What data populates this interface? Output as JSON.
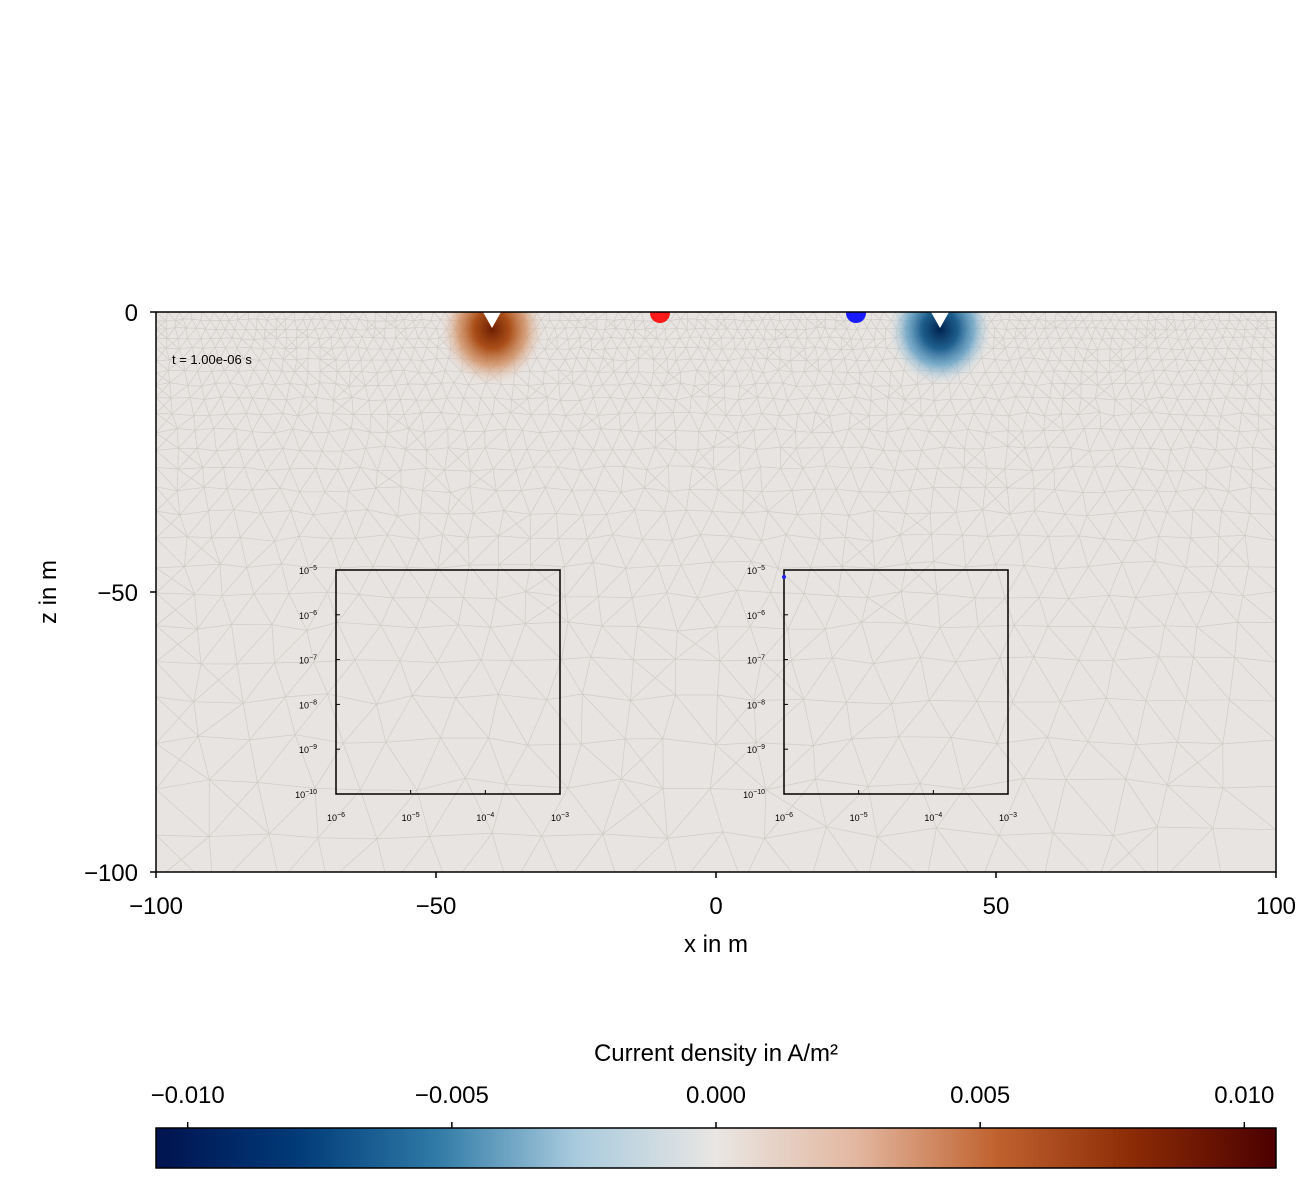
{
  "chart_data": {
    "type": "heatmap",
    "annotation": "t = 1.00e-06 s",
    "main_axes": {
      "xlabel": "x in m",
      "ylabel": "z in m",
      "xlim": [
        -100,
        100
      ],
      "ylim": [
        -100,
        0
      ],
      "xticks": [
        -100,
        -50,
        0,
        50,
        100
      ],
      "xtick_labels": [
        "−100",
        "−50",
        "0",
        "50",
        "100"
      ],
      "yticks": [
        0,
        -50,
        -100
      ],
      "ytick_labels": [
        "0",
        "−50",
        "−100"
      ],
      "grid": false,
      "background_color": "#e8e4e1",
      "mesh_color": "#c9c5c2"
    },
    "field_sources": [
      {
        "x": -40,
        "z": -2,
        "polarity": "positive",
        "peak": 0.01
      },
      {
        "x": 40,
        "z": -2,
        "polarity": "negative",
        "peak": -0.01
      }
    ],
    "electrodes": [
      {
        "x": -10,
        "z": 0,
        "color": "#ff1a1a"
      },
      {
        "x": 25,
        "z": 0,
        "color": "#1a1aff"
      }
    ],
    "surface_markers": [
      {
        "x": -40,
        "z": 0,
        "shape": "triangle-down",
        "color": "#ffffff"
      },
      {
        "x": 40,
        "z": 0,
        "shape": "triangle-down",
        "color": "#ffffff"
      }
    ],
    "insets": [
      {
        "xscale": "log",
        "yscale": "log",
        "xlim": [
          1e-06,
          0.001
        ],
        "ylim": [
          1e-10,
          1e-05
        ],
        "xtick_labels": [
          [
            "10",
            "−6"
          ],
          [
            "10",
            "−5"
          ],
          [
            "10",
            "−4"
          ],
          [
            "10",
            "−3"
          ]
        ],
        "ytick_labels": [
          [
            "10",
            "−5"
          ],
          [
            "10",
            "−6"
          ],
          [
            "10",
            "−7"
          ],
          [
            "10",
            "−8"
          ],
          [
            "10",
            "−9"
          ],
          [
            "10",
            "−10"
          ]
        ],
        "points": []
      },
      {
        "xscale": "log",
        "yscale": "log",
        "xlim": [
          1e-06,
          0.001
        ],
        "ylim": [
          1e-10,
          1e-05
        ],
        "xtick_labels": [
          [
            "10",
            "−6"
          ],
          [
            "10",
            "−5"
          ],
          [
            "10",
            "−4"
          ],
          [
            "10",
            "−3"
          ]
        ],
        "ytick_labels": [
          [
            "10",
            "−5"
          ],
          [
            "10",
            "−6"
          ],
          [
            "10",
            "−7"
          ],
          [
            "10",
            "−8"
          ],
          [
            "10",
            "−9"
          ],
          [
            "10",
            "−10"
          ]
        ],
        "points": [
          {
            "x": 1e-06,
            "y": 7e-06,
            "color": "#2020ff"
          }
        ]
      }
    ],
    "colorbar": {
      "label": "Current density in A/m²",
      "limits": [
        -0.0106,
        0.0106
      ],
      "ticks": [
        -0.01,
        -0.005,
        0.0,
        0.005,
        0.01
      ],
      "tick_labels": [
        "−0.010",
        "−0.005",
        "0.000",
        "0.005",
        "0.010"
      ],
      "colormap": [
        "#00134f",
        "#003a78",
        "#2f7aa6",
        "#a9cbde",
        "#e9e6e3",
        "#e3b7a0",
        "#c0622f",
        "#8a2a05",
        "#4b0000"
      ]
    }
  }
}
